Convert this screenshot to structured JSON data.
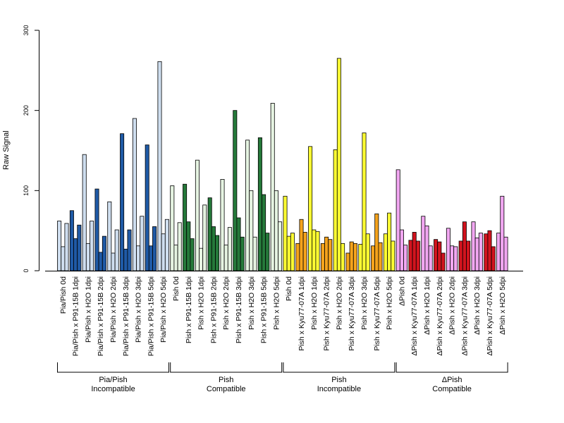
{
  "chart_data": {
    "type": "bar",
    "ylabel": "Raw Signal",
    "ylim": [
      0,
      300
    ],
    "yticks": [
      0,
      100,
      200,
      300
    ],
    "grid": false,
    "bars_per_category": 3,
    "categories": [
      "Pia/Pish 0d",
      "Pia/Pish x P91-15B 1dpi",
      "Pia/Pish x H2O 1dpi",
      "Pia/Pish x P91-15B 2dpi",
      "Pia/Pish x H2O 2dpi",
      "Pia/Pish x P91-15B 3dpi",
      "Pia/Pish x H2O 3dpi",
      "Pia/Pish x P91-15B 5dpi",
      "Pia/Pish x H2O 5dpi",
      "Pish 0d",
      "Pish x P91-15B 1dpi",
      "Pish x H2O 1dpi",
      "Pish x P91-15B 2dpi",
      "Pish x H2O 2dpi",
      "Pish x P91-15B 3dpi",
      "Pish x H2O 3dpi",
      "Pish x P91-15B 5dpi",
      "Pish x H2O 5dpi",
      "Pish 0d",
      "Pish x Kyu77-07A 1dpi",
      "Pish x H2O 1dpi",
      "Pish x Kyu77-07A 2dpi",
      "Pish x H2O 2dpi",
      "Pish x Kyu77-07A 3dpi",
      "Pish x H2O 3dpi",
      "Pish x Kyu77-07A 5dpi",
      "Pish x H2O 5dpi",
      "ΔPish 0d",
      "ΔPish x Kyu77-07A 1dpi",
      "ΔPish x H2O 1dpi",
      "ΔPish x Kyu77-07A 2dpi",
      "ΔPish x H2O 2dpi",
      "ΔPish x Kyu77-07A 3dpi",
      "ΔPish x H2O 3dpi",
      "ΔPish x Kyu77-07A 5dpi",
      "ΔPish x H2O 5dpi"
    ],
    "values": [
      [
        62,
        30,
        59
      ],
      [
        75,
        40,
        57
      ],
      [
        145,
        34,
        62
      ],
      [
        102,
        23,
        43
      ],
      [
        86,
        22,
        51
      ],
      [
        171,
        27,
        51
      ],
      [
        190,
        31,
        68
      ],
      [
        157,
        31,
        55
      ],
      [
        261,
        46,
        64
      ],
      [
        106,
        32,
        60
      ],
      [
        108,
        61,
        40
      ],
      [
        138,
        28,
        82
      ],
      [
        91,
        55,
        44
      ],
      [
        114,
        32,
        54
      ],
      [
        200,
        66,
        42
      ],
      [
        163,
        100,
        42
      ],
      [
        166,
        95,
        47
      ],
      [
        209,
        100,
        61
      ],
      [
        93,
        43,
        47
      ],
      [
        34,
        64,
        48
      ],
      [
        155,
        51,
        49
      ],
      [
        34,
        42,
        39
      ],
      [
        151,
        265,
        34
      ],
      [
        22,
        36,
        34
      ],
      [
        33,
        172,
        46
      ],
      [
        31,
        71,
        35
      ],
      [
        46,
        72,
        37
      ],
      [
        126,
        51,
        32
      ],
      [
        38,
        48,
        37
      ],
      [
        68,
        56,
        31
      ],
      [
        39,
        36,
        22
      ],
      [
        53,
        31,
        30
      ],
      [
        37,
        61,
        37
      ],
      [
        61,
        41,
        47
      ],
      [
        46,
        50,
        30
      ],
      [
        47,
        93,
        42
      ]
    ],
    "category_colors": [
      "#cfdeef",
      "#1f5aa6",
      "#cfdeef",
      "#1f5aa6",
      "#cfdeef",
      "#1f5aa6",
      "#cfdeef",
      "#1f5aa6",
      "#cfdeef",
      "#e6f4e2",
      "#25793a",
      "#e6f4e2",
      "#25793a",
      "#e6f4e2",
      "#25793a",
      "#e6f4e2",
      "#25793a",
      "#e6f4e2",
      "#ffff33",
      "#f5a31c",
      "#ffff33",
      "#f5a31c",
      "#ffff33",
      "#f5a31c",
      "#ffff33",
      "#f5a31c",
      "#ffff33",
      "#f2a7f2",
      "#d2141e",
      "#f2a7f2",
      "#d2141e",
      "#f2a7f2",
      "#d2141e",
      "#f2a7f2",
      "#d2141e",
      "#f2a7f2"
    ],
    "groups": [
      {
        "line1": "Pia/Pish",
        "line2": "Incompatible",
        "start": 0,
        "end": 8
      },
      {
        "line1": "Pish",
        "line2": "Compatible",
        "start": 9,
        "end": 17
      },
      {
        "line1": "Pish",
        "line2": "Incompatible",
        "start": 18,
        "end": 26
      },
      {
        "line1": "ΔPish",
        "line2": "Compatible",
        "start": 27,
        "end": 35
      }
    ]
  }
}
